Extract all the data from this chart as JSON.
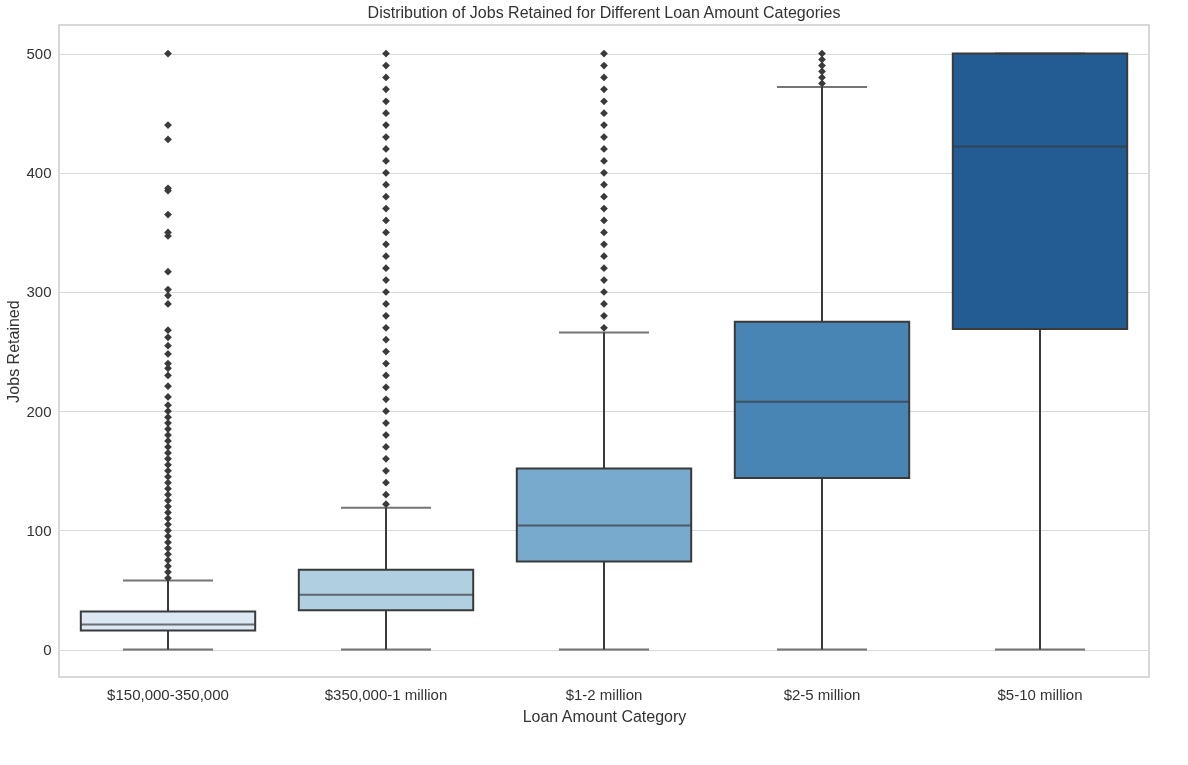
{
  "chart_data": {
    "type": "box",
    "title": "Distribution of Jobs Retained for Different Loan Amount Categories",
    "xlabel": "Loan Amount Category",
    "ylabel": "Jobs Retained",
    "categories": [
      "$150,000-350,000",
      "$350,000-1 million",
      "$1-2 million",
      "$2-5 million",
      "$5-10 million"
    ],
    "colors": [
      "#dce9f4",
      "#b0cfe1",
      "#77aacc",
      "#4884b4",
      "#225c92"
    ],
    "boxes": [
      {
        "low": 0,
        "q1": 16,
        "median": 21,
        "q3": 32,
        "high": 58,
        "outliers": [
          60,
          65,
          70,
          75,
          80,
          85,
          90,
          95,
          100,
          105,
          110,
          115,
          120,
          125,
          130,
          135,
          140,
          145,
          150,
          155,
          160,
          165,
          170,
          175,
          180,
          185,
          190,
          195,
          200,
          205,
          212,
          221,
          230,
          236,
          240,
          248,
          255,
          262,
          268,
          290,
          297,
          302,
          317,
          347,
          350,
          365,
          385,
          387,
          428,
          440,
          500
        ]
      },
      {
        "low": 0,
        "q1": 33,
        "median": 46,
        "q3": 67,
        "high": 119,
        "outliers": [
          122,
          130,
          140,
          150,
          160,
          170,
          180,
          190,
          200,
          210,
          220,
          230,
          240,
          250,
          260,
          270,
          280,
          290,
          300,
          310,
          320,
          330,
          340,
          350,
          360,
          370,
          380,
          390,
          400,
          410,
          420,
          430,
          440,
          450,
          460,
          470,
          480,
          490,
          500
        ]
      },
      {
        "low": 0,
        "q1": 74,
        "median": 104,
        "q3": 152,
        "high": 266,
        "outliers": [
          270,
          280,
          290,
          300,
          310,
          320,
          330,
          340,
          350,
          360,
          370,
          380,
          390,
          400,
          410,
          420,
          430,
          440,
          450,
          460,
          470,
          480,
          490,
          500
        ]
      },
      {
        "low": 0,
        "q1": 144,
        "median": 208,
        "q3": 275,
        "high": 472,
        "outliers": [
          475,
          480,
          485,
          490,
          495,
          500
        ]
      },
      {
        "low": 0,
        "q1": 269,
        "median": 422,
        "q3": 500,
        "high": 500
      }
    ],
    "ylim": [
      -23,
      524
    ],
    "yticks": [
      0,
      100,
      200,
      300,
      400,
      500
    ],
    "grid": "y",
    "marker": "diamond"
  }
}
